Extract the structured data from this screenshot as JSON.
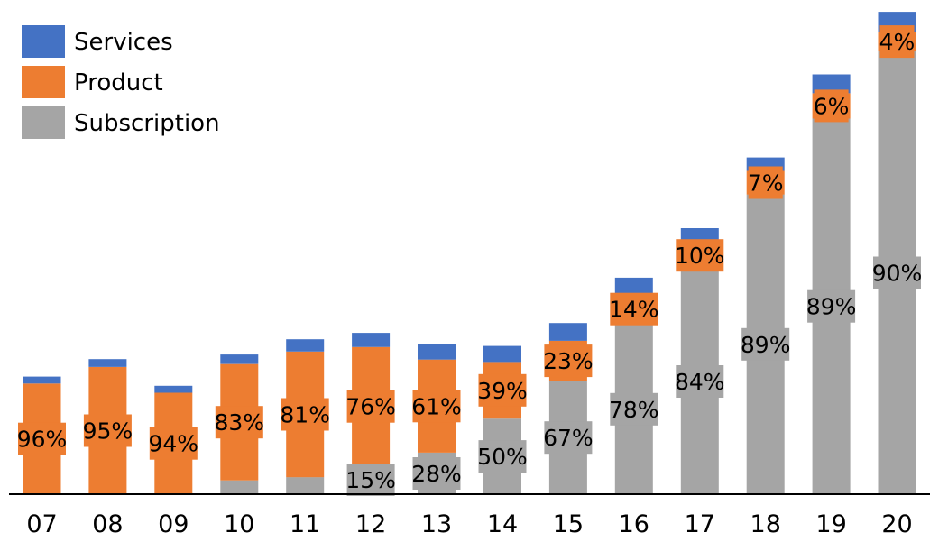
{
  "chart_data": {
    "type": "bar",
    "stacked": true,
    "title": "",
    "xlabel": "",
    "ylabel": "",
    "ylim": [
      0,
      1
    ],
    "categories": [
      "07",
      "08",
      "09",
      "10",
      "11",
      "12",
      "13",
      "14",
      "15",
      "16",
      "17",
      "18",
      "19",
      "20"
    ],
    "series": [
      {
        "name": "Subscription",
        "color": "#A5A5A5",
        "values": [
          0.0,
          0.0,
          0.0,
          0.0286,
          0.0352,
          0.0584,
          0.086,
          0.1563,
          0.2344,
          0.3516,
          0.4663,
          0.6201,
          0.7771,
          0.9161
        ],
        "labels": [
          "",
          "",
          "",
          "",
          "",
          "15%",
          "28%",
          "50%",
          "67%",
          "78%",
          "84%",
          "89%",
          "89%",
          "90%"
        ]
      },
      {
        "name": "Product",
        "color": "#ED7D31",
        "values": [
          0.2289,
          0.2631,
          0.21,
          0.2407,
          0.26,
          0.2461,
          0.1926,
          0.1172,
          0.083,
          0.063,
          0.0555,
          0.0488,
          0.0524,
          0.0407
        ],
        "labels": [
          "96%",
          "95%",
          "94%",
          "83%",
          "81%",
          "76%",
          "61%",
          "39%",
          "23%",
          "14%",
          "10%",
          "7%",
          "6%",
          "4%"
        ]
      },
      {
        "name": "Services",
        "color": "#4472C4",
        "values": [
          0.0144,
          0.0163,
          0.0143,
          0.0196,
          0.0254,
          0.0293,
          0.0324,
          0.0332,
          0.0367,
          0.0333,
          0.0286,
          0.0278,
          0.039,
          0.0412
        ],
        "labels": [
          "",
          "",
          "",
          "",
          "",
          "",
          "",
          "",
          "",
          "",
          "",
          "",
          "",
          ""
        ]
      }
    ],
    "legend": {
      "position": "top-left",
      "order": [
        "Services",
        "Product",
        "Subscription"
      ]
    },
    "grid": false
  }
}
